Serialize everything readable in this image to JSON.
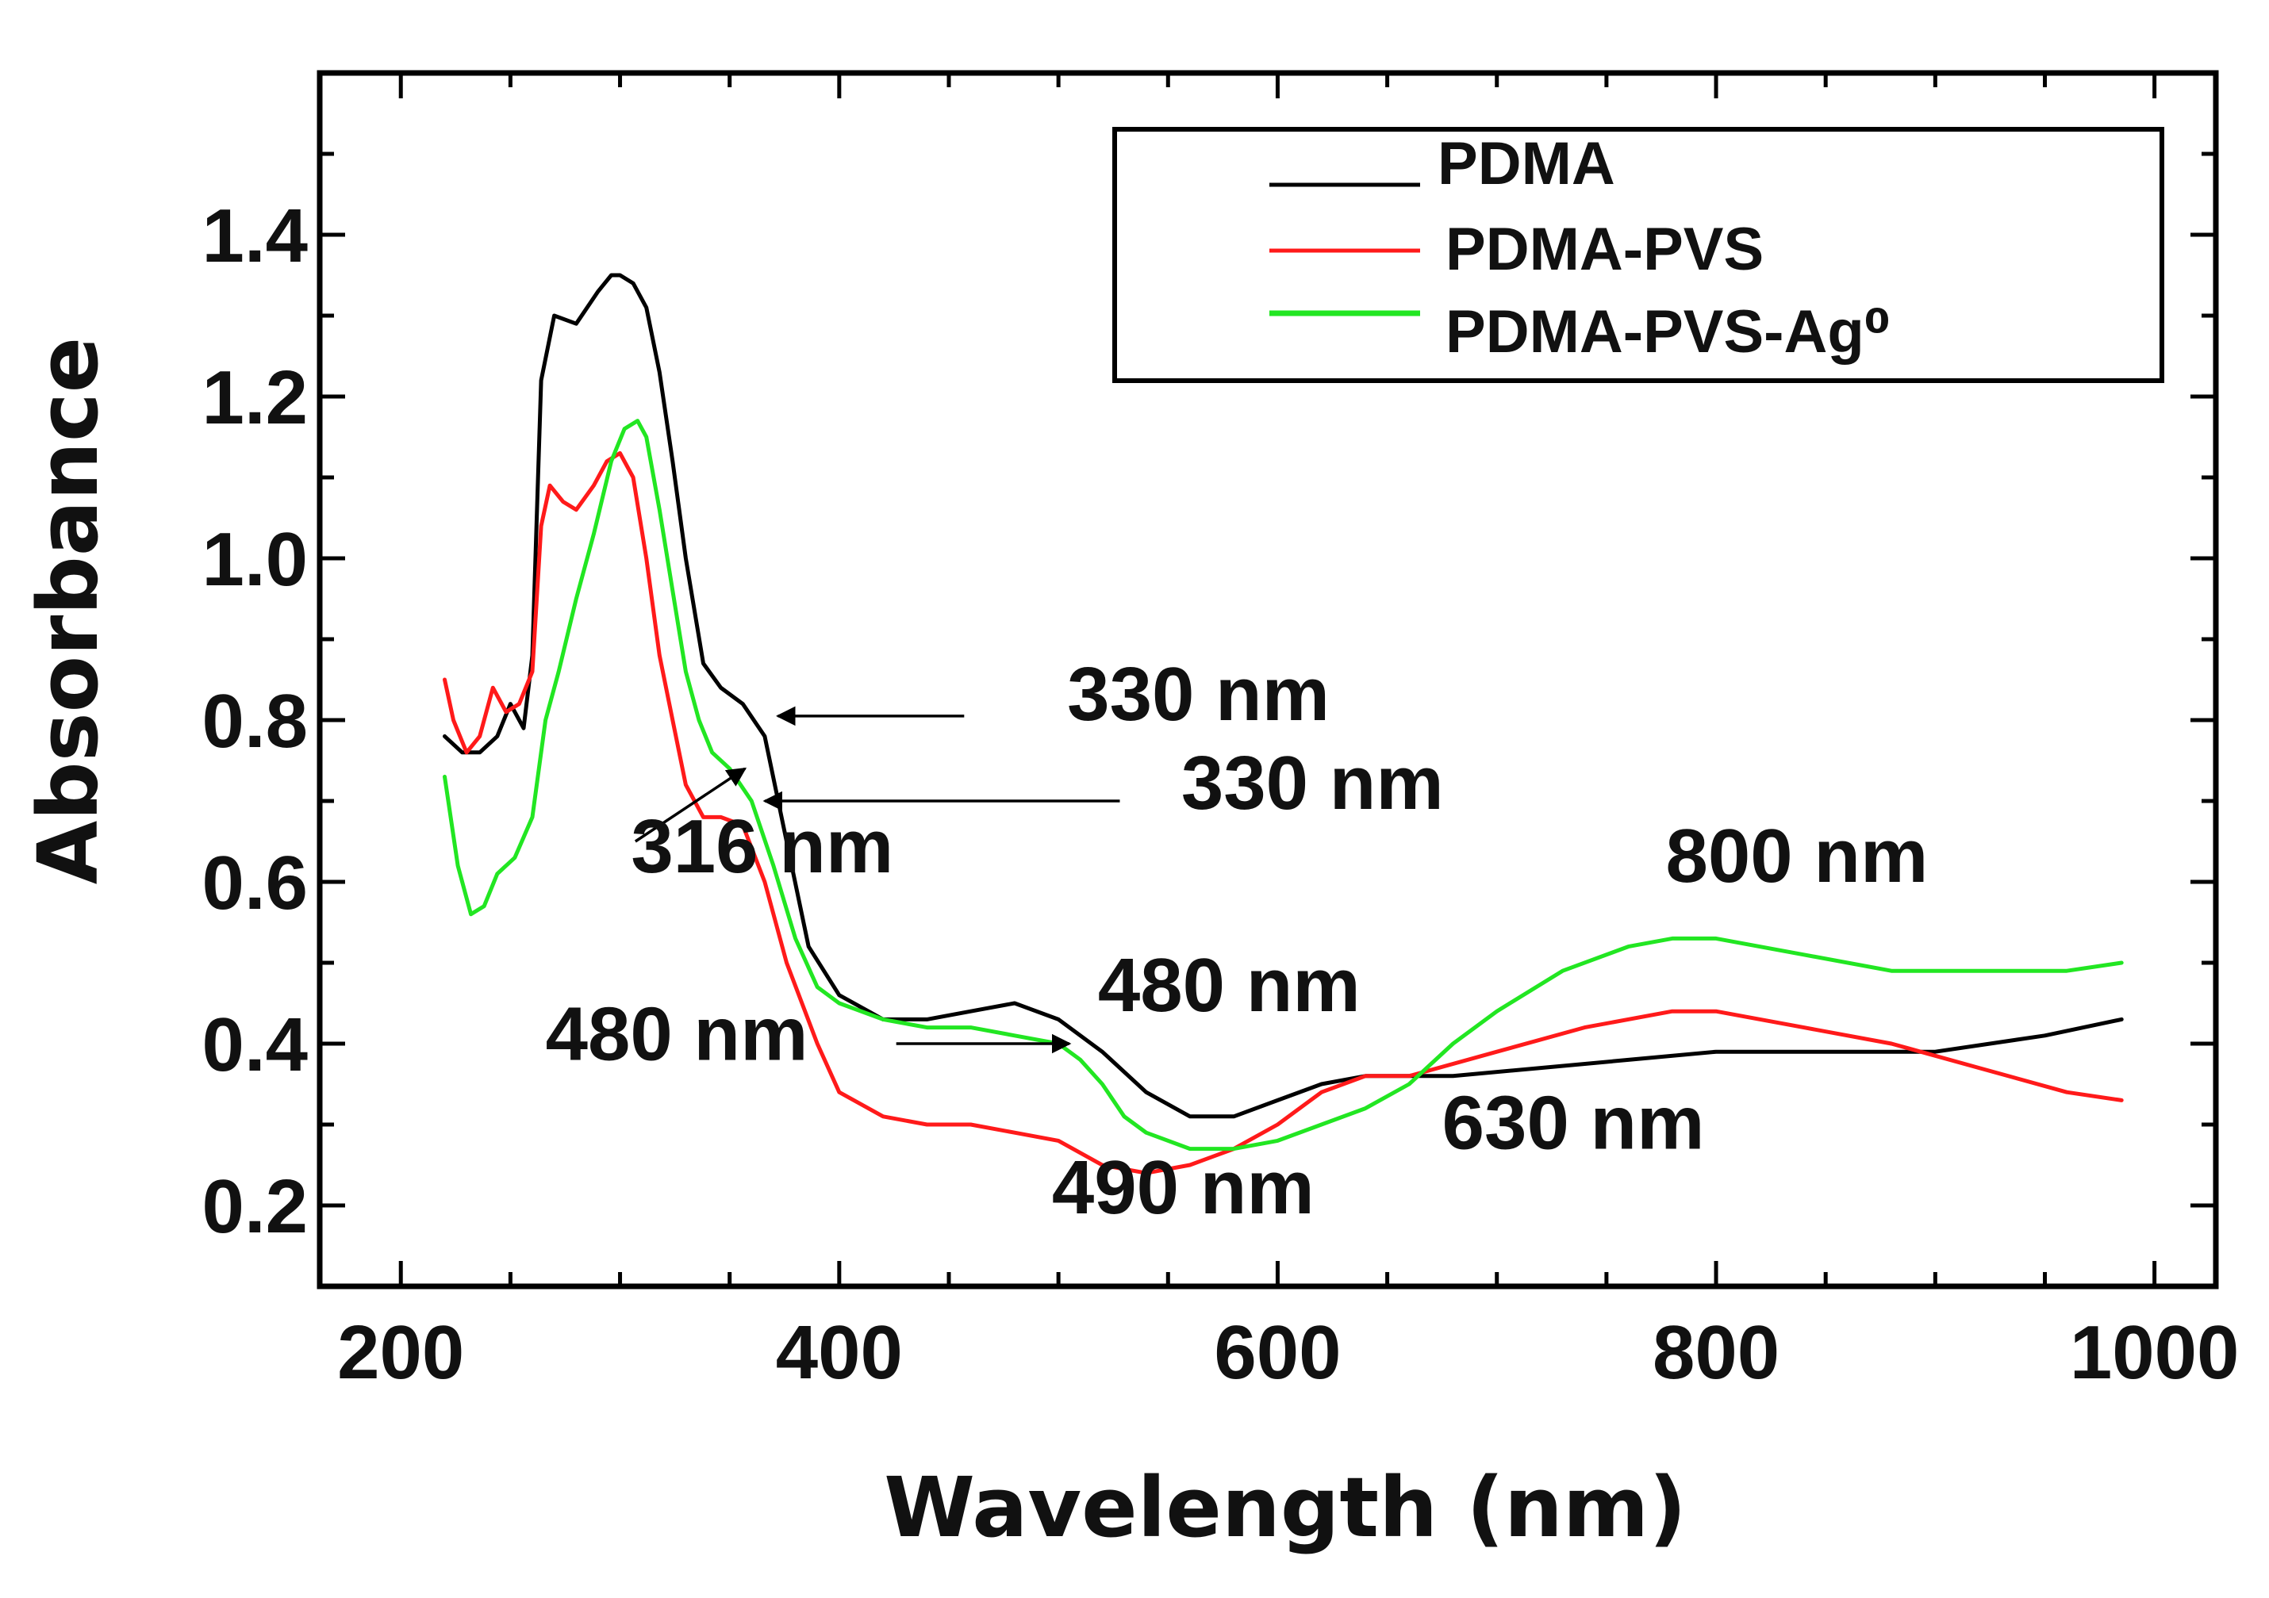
{
  "chart_data": {
    "type": "line",
    "xlabel": "Wavelength (nm)",
    "ylabel": "Absorbance",
    "xlim": [
      163,
      1028
    ],
    "ylim": [
      0.1,
      1.6
    ],
    "xticks": [
      200,
      400,
      600,
      800,
      1000
    ],
    "xtick_labels": [
      "200",
      "400",
      "600",
      "800",
      "1000"
    ],
    "yticks": [
      0.2,
      0.4,
      0.6,
      0.8,
      1.0,
      1.2,
      1.4
    ],
    "ytick_labels": [
      "0.2",
      "0.4",
      "0.6",
      "0.8",
      "1.0",
      "1.2",
      "1.4"
    ],
    "grid": false,
    "legend_position": "top-right",
    "series": [
      {
        "name": "PDMA",
        "color": "#000000",
        "x": [
          220,
          228,
          236,
          244,
          250,
          256,
          260,
          264,
          270,
          280,
          290,
          296,
          300,
          306,
          312,
          318,
          324,
          330,
          338,
          346,
          356,
          366,
          376,
          386,
          400,
          420,
          440,
          460,
          480,
          500,
          520,
          540,
          560,
          580,
          600,
          620,
          640,
          680,
          720,
          760,
          800,
          850,
          900,
          950,
          985
        ],
        "y": [
          0.78,
          0.76,
          0.76,
          0.78,
          0.82,
          0.79,
          0.88,
          1.22,
          1.3,
          1.29,
          1.33,
          1.35,
          1.35,
          1.34,
          1.31,
          1.23,
          1.12,
          1.0,
          0.87,
          0.84,
          0.82,
          0.78,
          0.65,
          0.52,
          0.46,
          0.43,
          0.43,
          0.44,
          0.45,
          0.43,
          0.39,
          0.34,
          0.31,
          0.31,
          0.33,
          0.35,
          0.36,
          0.36,
          0.37,
          0.38,
          0.39,
          0.39,
          0.39,
          0.41,
          0.43
        ]
      },
      {
        "name": "PDMA-PVS",
        "color": "#ff1a1a",
        "x": [
          220,
          224,
          230,
          236,
          242,
          248,
          254,
          260,
          264,
          268,
          274,
          280,
          288,
          294,
          300,
          306,
          312,
          318,
          324,
          330,
          338,
          346,
          356,
          366,
          376,
          390,
          400,
          420,
          440,
          460,
          480,
          500,
          520,
          540,
          560,
          580,
          600,
          620,
          640,
          660,
          700,
          740,
          780,
          800,
          840,
          880,
          920,
          960,
          985
        ],
        "y": [
          0.85,
          0.8,
          0.76,
          0.78,
          0.84,
          0.81,
          0.82,
          0.86,
          1.04,
          1.09,
          1.07,
          1.06,
          1.09,
          1.12,
          1.13,
          1.1,
          1.0,
          0.88,
          0.8,
          0.72,
          0.68,
          0.68,
          0.67,
          0.6,
          0.5,
          0.4,
          0.34,
          0.31,
          0.3,
          0.3,
          0.29,
          0.28,
          0.25,
          0.24,
          0.25,
          0.27,
          0.3,
          0.34,
          0.36,
          0.36,
          0.39,
          0.42,
          0.44,
          0.44,
          0.42,
          0.4,
          0.37,
          0.34,
          0.33
        ]
      },
      {
        "name": "PDMA-PVS-Ag⁰",
        "color": "#22e622",
        "x": [
          220,
          226,
          232,
          238,
          244,
          252,
          260,
          266,
          272,
          280,
          288,
          296,
          302,
          308,
          312,
          318,
          324,
          330,
          336,
          342,
          350,
          360,
          370,
          380,
          390,
          400,
          420,
          440,
          460,
          480,
          500,
          510,
          520,
          530,
          540,
          560,
          580,
          600,
          620,
          640,
          660,
          680,
          700,
          730,
          760,
          780,
          800,
          840,
          880,
          920,
          960,
          985
        ],
        "y": [
          0.73,
          0.62,
          0.56,
          0.57,
          0.61,
          0.63,
          0.68,
          0.8,
          0.86,
          0.95,
          1.03,
          1.12,
          1.16,
          1.17,
          1.15,
          1.06,
          0.96,
          0.86,
          0.8,
          0.76,
          0.74,
          0.7,
          0.62,
          0.53,
          0.47,
          0.45,
          0.43,
          0.42,
          0.42,
          0.41,
          0.4,
          0.38,
          0.35,
          0.31,
          0.29,
          0.27,
          0.27,
          0.28,
          0.3,
          0.32,
          0.35,
          0.4,
          0.44,
          0.49,
          0.52,
          0.53,
          0.53,
          0.51,
          0.49,
          0.49,
          0.49,
          0.5
        ]
      }
    ],
    "annotations": [
      {
        "text": "330 nm",
        "label_x": 504,
        "label_y": 0.8,
        "arrow_from": [
          457,
          0.805
        ],
        "arrow_to": [
          372,
          0.805
        ]
      },
      {
        "text": "330 nm",
        "label_x": 556,
        "label_y": 0.69,
        "arrow_from": [
          528,
          0.7
        ],
        "arrow_to": [
          366,
          0.7
        ]
      },
      {
        "text": "316 nm",
        "label_x": 305,
        "label_y": 0.612,
        "arrow_from": [
          307,
          0.65
        ],
        "arrow_to": [
          357,
          0.74
        ]
      },
      {
        "text": "480 nm",
        "label_x": 518,
        "label_y": 0.44,
        "arrow_from": null,
        "arrow_to": null
      },
      {
        "text": "480 nm",
        "label_x": 266,
        "label_y": 0.38,
        "arrow_from": [
          426,
          0.4
        ],
        "arrow_to": [
          505,
          0.4
        ]
      },
      {
        "text": "630 nm",
        "label_x": 675,
        "label_y": 0.27,
        "arrow_from": null,
        "arrow_to": null
      },
      {
        "text": "490 nm",
        "label_x": 497,
        "label_y": 0.19,
        "arrow_from": null,
        "arrow_to": null
      },
      {
        "text": "800 nm",
        "label_x": 777,
        "label_y": 0.6,
        "arrow_from": null,
        "arrow_to": null
      }
    ]
  }
}
